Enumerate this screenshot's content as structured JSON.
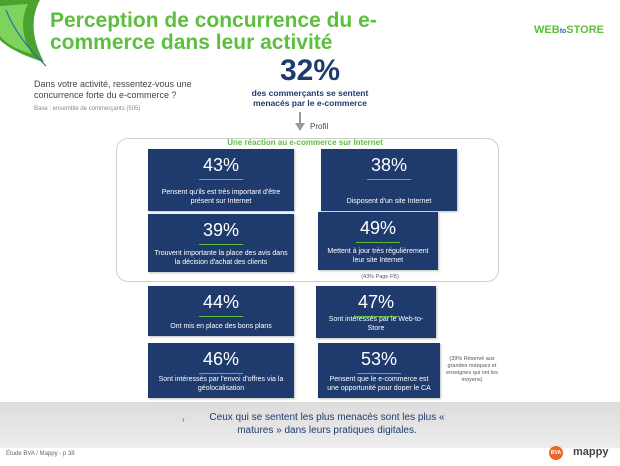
{
  "header": {
    "title": "Perception de concurrence du e-commerce dans leur activité",
    "brand_web": "WEB",
    "brand_to": "to",
    "brand_store": "STORE"
  },
  "intro": {
    "question": "Dans votre activité, ressentez-vous une concurrence forte du e-commerce ?",
    "base": "Base : ensemble de commerçants (505)"
  },
  "headline": {
    "percent": "32%",
    "subtitle": "des commerçants se sentent menacés par le e-commerce",
    "profil_label": "Profil"
  },
  "reaction": {
    "title": "Une réaction au e-commerce sur Internet"
  },
  "cards": [
    {
      "percent": "43%",
      "label": "Pensent qu'ils est très important d'être présent sur Internet"
    },
    {
      "percent": "38%",
      "label": "Disposent d'un site Internet"
    },
    {
      "percent": "39%",
      "label": "Trouvent importante la place des avis dans la décision d'achat des clients"
    },
    {
      "percent": "49%",
      "label": "Mettent à jour très régulièrement leur site Internet"
    },
    {
      "percent": "44%",
      "label": "Ont mis en place des bons plans"
    },
    {
      "percent": "47%",
      "label": "Sont intéressés par le Web-to-Store"
    },
    {
      "percent": "46%",
      "label": "Sont intéressés par l'envoi d'offres via la géolocalisation"
    },
    {
      "percent": "53%",
      "label": "Pensent que le e-commerce est une opportunité pour doper le CA"
    }
  ],
  "notes": {
    "page_fb": "(43% Page FB)",
    "reserve": "(39% Réservé aux grandes marques et enseignes qui ont les moyens)"
  },
  "banner": {
    "arrow": "›",
    "text": "Ceux qui se sentent les plus menacés sont les plus « matures » dans leurs pratiques digitales."
  },
  "footer": {
    "text": "Étude BVA / Mappy - p 38",
    "bva": "BVA",
    "mappy": "mappy"
  },
  "colors": {
    "accent_green": "#5cbf3d",
    "card_navy": "#1f3b6e"
  }
}
